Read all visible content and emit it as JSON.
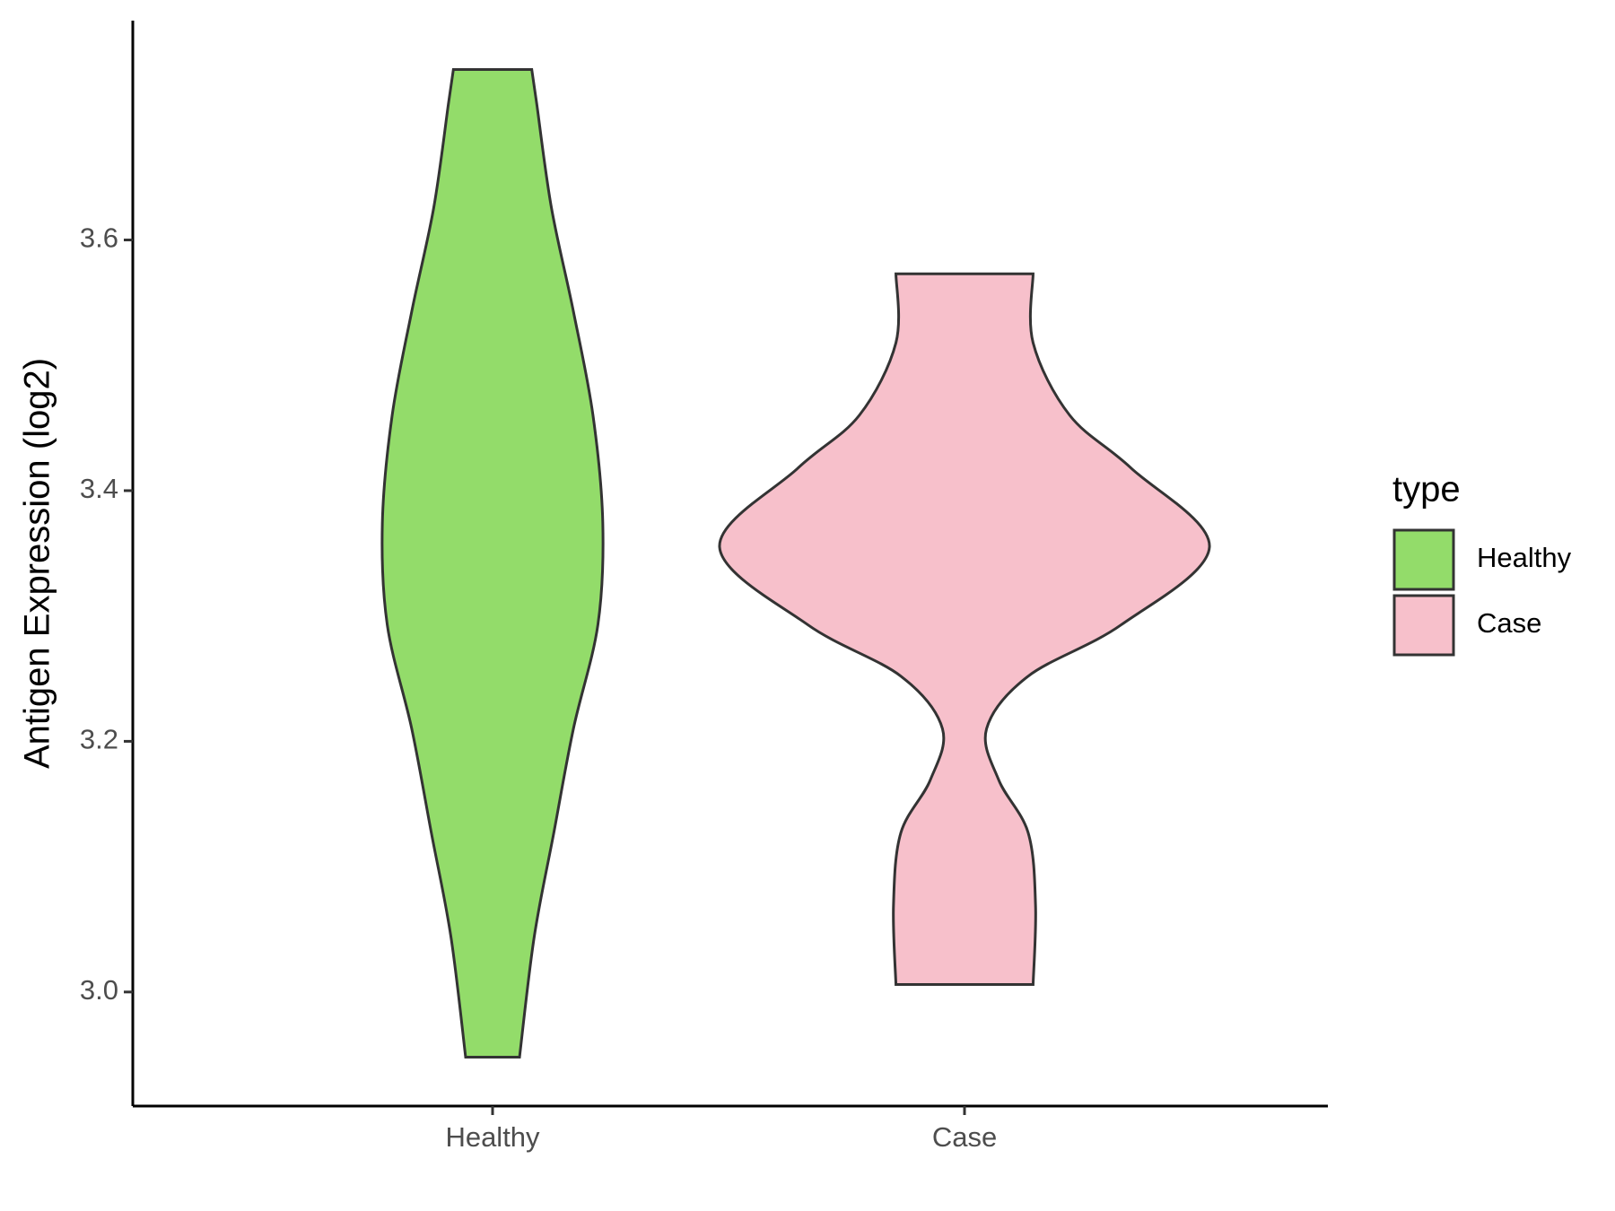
{
  "chart_data": {
    "type": "violin",
    "y_label": "Antigen Expression (log2)",
    "categories": [
      "Healthy",
      "Case"
    ],
    "legend_title": "type",
    "legend_position": "right",
    "ylim": [
      2.909,
      3.775
    ],
    "yticks": [
      {
        "value": 3.0,
        "label": "3.0"
      },
      {
        "value": 3.2,
        "label": "3.2"
      },
      {
        "value": 3.4,
        "label": "3.4"
      },
      {
        "value": 3.6,
        "label": "3.6"
      }
    ],
    "series": [
      {
        "name": "Healthy",
        "color": "#93dc6a",
        "y": [
          3.736,
          3.709,
          3.626,
          3.543,
          3.46,
          3.374,
          3.293,
          3.21,
          3.127,
          3.044,
          2.948
        ],
        "density": [
          0.16,
          0.18,
          0.24,
          0.33,
          0.41,
          0.45,
          0.43,
          0.33,
          0.25,
          0.17,
          0.11
        ]
      },
      {
        "name": "Case",
        "color": "#f7c0cb",
        "y": [
          3.573,
          3.518,
          3.46,
          3.418,
          3.355,
          3.293,
          3.252,
          3.21,
          3.169,
          3.127,
          3.069,
          3.006
        ],
        "density": [
          0.28,
          0.28,
          0.43,
          0.68,
          1.0,
          0.64,
          0.26,
          0.09,
          0.14,
          0.26,
          0.29,
          0.28
        ]
      }
    ]
  }
}
